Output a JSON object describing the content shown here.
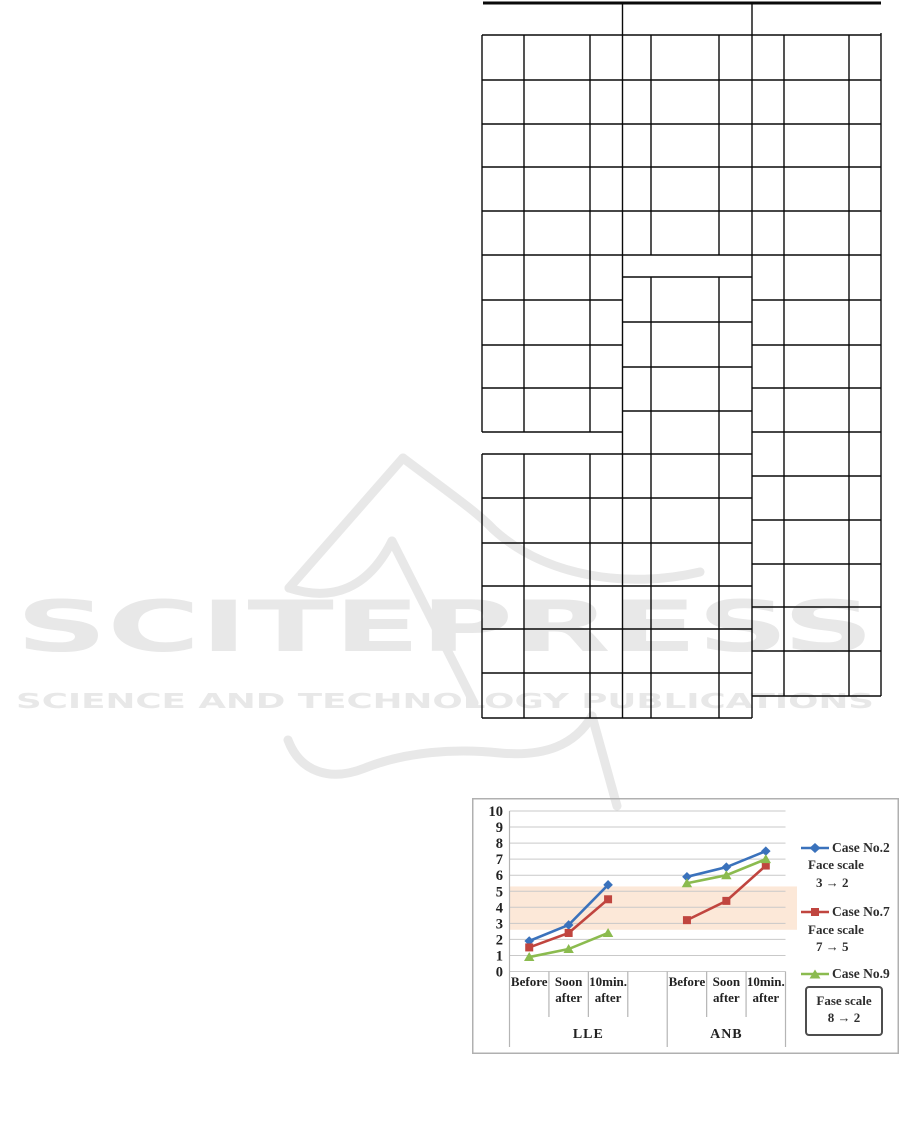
{
  "watermark": {
    "title": "SCITEPRESS",
    "subtitle": "SCIENCE AND TECHNOLOGY PUBLICATIONS",
    "color": "#e8e8e8"
  },
  "chart_data": {
    "type": "line",
    "title": "",
    "ylabel": "",
    "xlabel": "",
    "ylim": [
      0,
      10
    ],
    "ytick_step": 1,
    "grid": true,
    "legend_position": "right",
    "groups": [
      {
        "label": "LLE",
        "categories": [
          "Before",
          "Soon after",
          "10min. after"
        ]
      },
      {
        "label": "ANB",
        "categories": [
          "Before",
          "Soon after",
          "10min. after"
        ]
      }
    ],
    "series": [
      {
        "name": "Case No.2",
        "marker": "diamond",
        "color": "#3a72bc",
        "values": {
          "LLE": [
            1.9,
            2.9,
            5.4
          ],
          "ANB": [
            5.9,
            6.5,
            7.5
          ]
        },
        "note": [
          "Face scale",
          "3 → 2"
        ],
        "note_boxed": false
      },
      {
        "name": "Case No.7",
        "marker": "square",
        "color": "#c0453f",
        "values": {
          "LLE": [
            1.5,
            2.4,
            4.5
          ],
          "ANB": [
            3.2,
            4.4,
            6.6
          ]
        },
        "note": [
          "Face scale",
          "7 → 5"
        ],
        "note_boxed": false
      },
      {
        "name": "Case No.9",
        "marker": "triangle",
        "color": "#8bbb4f",
        "values": {
          "LLE": [
            0.9,
            1.4,
            2.4
          ],
          "ANB": [
            5.5,
            6.0,
            7.0
          ]
        },
        "note": [
          "Fase scale",
          "8 → 2"
        ],
        "note_boxed": true
      }
    ],
    "highlight_band": {
      "from": 2.6,
      "to": 5.3,
      "color": "#fce8d8"
    }
  }
}
